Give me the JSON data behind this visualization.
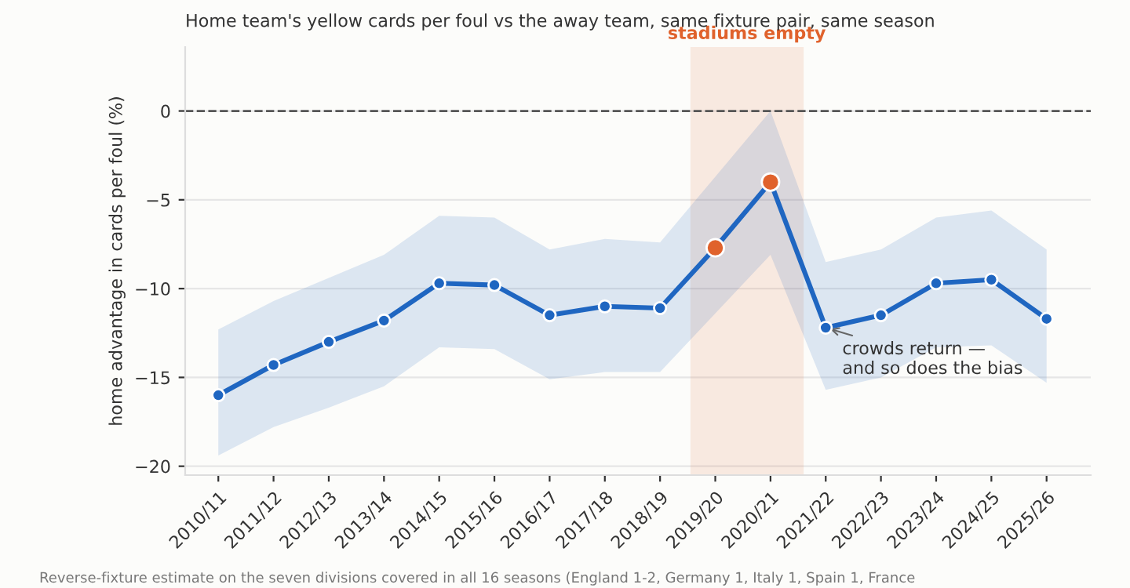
{
  "chart_data": {
    "type": "line",
    "subtitle": "Home team's yellow cards per foul vs the away team, same fixture pair, same season",
    "ylabel": "home advantage in cards per foul (%)",
    "categories": [
      "2010/11",
      "2011/12",
      "2012/13",
      "2013/14",
      "2014/15",
      "2015/16",
      "2016/17",
      "2017/18",
      "2018/19",
      "2019/20",
      "2020/21",
      "2021/22",
      "2022/23",
      "2023/24",
      "2024/25",
      "2025/26"
    ],
    "series": [
      {
        "color": "#1f66c1",
        "colors": [
          "#1f66c1",
          "#1f66c1",
          "#1f66c1",
          "#1f66c1",
          "#1f66c1",
          "#1f66c1",
          "#1f66c1",
          "#1f66c1",
          "#1f66c1",
          "#e0622c",
          "#e0622c",
          "#1f66c1",
          "#1f66c1",
          "#1f66c1",
          "#1f66c1",
          "#1f66c1"
        ],
        "values": [
          -16.0,
          -14.3,
          -13.0,
          -11.8,
          -9.7,
          -9.8,
          -11.5,
          -11.0,
          -11.1,
          -7.7,
          -4.0,
          -12.2,
          -11.5,
          -9.7,
          -9.5,
          -11.7
        ],
        "lower": [
          -19.4,
          -17.8,
          -16.7,
          -15.5,
          -13.3,
          -13.4,
          -15.1,
          -14.7,
          -14.7,
          -11.4,
          -8.1,
          -15.7,
          -15.0,
          -13.3,
          -13.2,
          -15.3
        ],
        "upper": [
          -12.3,
          -10.7,
          -9.4,
          -8.1,
          -5.9,
          -6.0,
          -7.8,
          -7.2,
          -7.4,
          -3.7,
          0,
          -8.5,
          -7.8,
          -6.0,
          -5.6,
          -7.8
        ]
      }
    ],
    "ylim": [
      -20.5,
      3.6
    ],
    "yticks": [
      {
        "value": -20,
        "label": "−20"
      },
      {
        "value": -15,
        "label": "−15"
      },
      {
        "value": -10,
        "label": "−10"
      },
      {
        "value": -5,
        "label": "−5"
      },
      0
    ],
    "ref_lines": [
      {
        "axis": "y",
        "value": 0,
        "color": "#555555",
        "line_style": "dashed"
      }
    ],
    "bands": [
      {
        "axis": "x",
        "from": "2019/20",
        "to": "2020/21",
        "label": "stadiums empty",
        "color": "#e0622c"
      }
    ],
    "annotations": [
      {
        "text": "crowds return —\nand so does the bias",
        "x": "2021/22",
        "y": -12.2
      },
      "Reverse-fixture estimate on the seven divisions covered in all 16 seasons (England 1-2, Germany 1, Italy 1, Spain 1, France"
    ],
    "grid": "y",
    "marker": "circle",
    "line_style": "solid",
    "legend": false
  }
}
